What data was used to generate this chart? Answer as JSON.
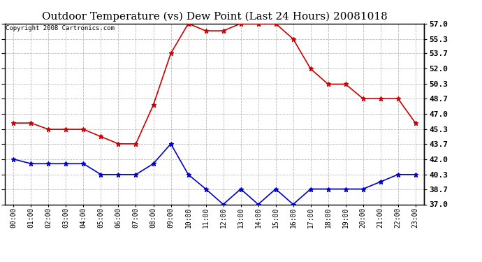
{
  "title": "Outdoor Temperature (vs) Dew Point (Last 24 Hours) 20081018",
  "copyright": "Copyright 2008 Cartronics.com",
  "hours": [
    "00:00",
    "01:00",
    "02:00",
    "03:00",
    "04:00",
    "05:00",
    "06:00",
    "07:00",
    "08:00",
    "09:00",
    "10:00",
    "11:00",
    "12:00",
    "13:00",
    "14:00",
    "15:00",
    "16:00",
    "17:00",
    "18:00",
    "19:00",
    "20:00",
    "21:00",
    "22:00",
    "23:00"
  ],
  "temp": [
    46.0,
    46.0,
    45.3,
    45.3,
    45.3,
    44.5,
    43.7,
    43.7,
    48.0,
    53.7,
    57.0,
    56.2,
    56.2,
    57.0,
    57.0,
    57.0,
    55.3,
    52.0,
    50.3,
    50.3,
    48.7,
    48.7,
    48.7,
    46.0
  ],
  "dew": [
    42.0,
    41.5,
    41.5,
    41.5,
    41.5,
    40.3,
    40.3,
    40.3,
    41.5,
    43.7,
    40.3,
    38.7,
    37.0,
    38.7,
    37.0,
    38.7,
    37.0,
    38.7,
    38.7,
    38.7,
    38.7,
    39.5,
    40.3,
    40.3
  ],
  "temp_color": "#cc0000",
  "dew_color": "#0000cc",
  "background": "#ffffff",
  "grid_color": "#aaaaaa",
  "ylim_min": 37.0,
  "ylim_max": 57.0,
  "yticks": [
    37.0,
    38.7,
    40.3,
    42.0,
    43.7,
    45.3,
    47.0,
    48.7,
    50.3,
    52.0,
    53.7,
    55.3,
    57.0
  ],
  "marker": "*",
  "marker_size": 5,
  "line_width": 1.2,
  "title_fontsize": 11,
  "copyright_fontsize": 6.5,
  "tick_fontsize": 7,
  "ytick_fontsize": 8
}
